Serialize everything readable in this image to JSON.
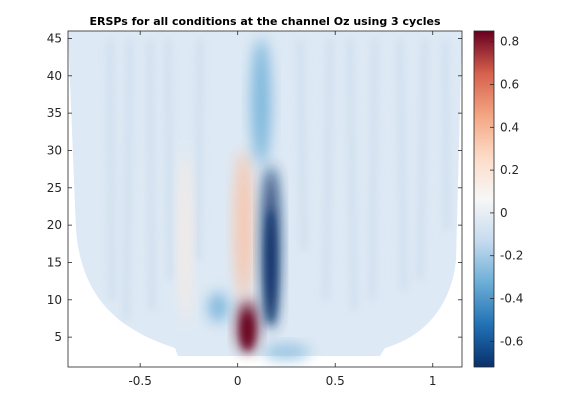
{
  "chart_data": {
    "type": "heatmap",
    "title": "ERSPs for all conditions at the channel Oz using 3 cycles",
    "xlabel": "",
    "ylabel": "",
    "xlim": [
      -0.87,
      1.15
    ],
    "ylim": [
      1,
      46
    ],
    "xticks": [
      -0.5,
      0,
      0.5,
      1
    ],
    "xtick_labels": [
      "-0.5",
      "0",
      "0.5",
      "1"
    ],
    "yticks": [
      5,
      10,
      15,
      20,
      25,
      30,
      35,
      40,
      45
    ],
    "ytick_labels": [
      "5",
      "10",
      "15",
      "20",
      "25",
      "30",
      "35",
      "40",
      "45"
    ],
    "colorbar": {
      "range": [
        -0.72,
        0.85
      ],
      "ticks": [
        -0.6,
        -0.4,
        -0.2,
        0,
        0.2,
        0.4,
        0.6,
        0.8
      ],
      "tick_labels": [
        "-0.6",
        "-0.4",
        "-0.2",
        "0",
        "0.2",
        "0.4",
        "0.6",
        "0.8"
      ],
      "colormap": "red-blue diverging",
      "colors": [
        "#08306b",
        "#2171b5",
        "#6baed6",
        "#c6dbef",
        "#f7f7f7",
        "#fddbc7",
        "#f4a582",
        "#d6604d",
        "#67001f"
      ]
    },
    "features": [
      {
        "t": 0.05,
        "f": [
          3,
          10
        ],
        "value": 0.85
      },
      {
        "t": 0.03,
        "f": [
          10,
          30
        ],
        "value": 0.35
      },
      {
        "t": 0.17,
        "f": [
          6,
          28
        ],
        "value": -0.72
      },
      {
        "t": 0.12,
        "f": [
          28,
          45
        ],
        "value": -0.3
      },
      {
        "t": -0.1,
        "f": [
          7,
          11
        ],
        "value": -0.3
      },
      {
        "t": -0.27,
        "f": [
          7,
          30
        ],
        "value": 0.15
      },
      {
        "t": 0.25,
        "f": [
          2,
          4
        ],
        "value": -0.25
      }
    ],
    "grid": false,
    "legend": "none"
  }
}
